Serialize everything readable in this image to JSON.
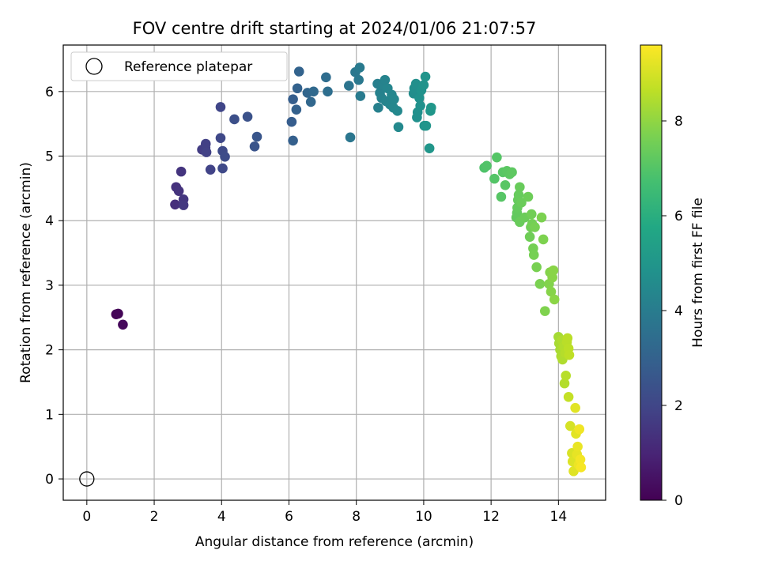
{
  "chart_data": {
    "type": "scatter",
    "title": "FOV centre drift starting at 2024/01/06 21:07:57",
    "xlabel": "Angular distance from reference (arcmin)",
    "ylabel": "Rotation from reference (arcmin)",
    "xlim": [
      -0.7,
      15.4
    ],
    "ylim": [
      -0.33,
      6.72
    ],
    "xticks": [
      0,
      2,
      4,
      6,
      8,
      10,
      12,
      14
    ],
    "yticks": [
      0,
      1,
      2,
      3,
      4,
      5,
      6
    ],
    "grid": true,
    "legend": {
      "position": "top-left",
      "entries": [
        "Reference platepar"
      ]
    },
    "reference_point": {
      "x": 0,
      "y": 0
    },
    "colorbar": {
      "label": "Hours from first FF file",
      "colormap": "viridis",
      "range": [
        0,
        9.6
      ],
      "ticks": [
        0,
        2,
        4,
        6,
        8
      ]
    },
    "points": [
      {
        "x": 0.87,
        "y": 2.55,
        "t": 0.05
      },
      {
        "x": 0.93,
        "y": 2.56,
        "t": 0.1
      },
      {
        "x": 1.07,
        "y": 2.39,
        "t": 0.2
      },
      {
        "x": 2.62,
        "y": 4.25,
        "t": 1.3
      },
      {
        "x": 2.65,
        "y": 4.52,
        "t": 1.35
      },
      {
        "x": 2.73,
        "y": 4.46,
        "t": 1.4
      },
      {
        "x": 2.8,
        "y": 4.76,
        "t": 1.45
      },
      {
        "x": 2.87,
        "y": 4.33,
        "t": 1.5
      },
      {
        "x": 2.87,
        "y": 4.24,
        "t": 1.55
      },
      {
        "x": 3.42,
        "y": 5.1,
        "t": 1.7
      },
      {
        "x": 3.52,
        "y": 5.13,
        "t": 1.75
      },
      {
        "x": 3.53,
        "y": 5.19,
        "t": 1.8
      },
      {
        "x": 3.55,
        "y": 5.06,
        "t": 1.85
      },
      {
        "x": 3.67,
        "y": 4.79,
        "t": 1.9
      },
      {
        "x": 3.97,
        "y": 5.76,
        "t": 2.0
      },
      {
        "x": 3.97,
        "y": 5.28,
        "t": 2.05
      },
      {
        "x": 4.03,
        "y": 4.81,
        "t": 2.1
      },
      {
        "x": 4.03,
        "y": 5.08,
        "t": 2.15
      },
      {
        "x": 4.1,
        "y": 4.99,
        "t": 2.2
      },
      {
        "x": 4.38,
        "y": 5.57,
        "t": 2.3
      },
      {
        "x": 4.77,
        "y": 5.61,
        "t": 2.4
      },
      {
        "x": 4.98,
        "y": 5.15,
        "t": 2.5
      },
      {
        "x": 5.05,
        "y": 5.3,
        "t": 2.55
      },
      {
        "x": 6.08,
        "y": 5.53,
        "t": 2.8
      },
      {
        "x": 6.12,
        "y": 5.88,
        "t": 2.85
      },
      {
        "x": 6.12,
        "y": 5.24,
        "t": 2.9
      },
      {
        "x": 6.22,
        "y": 5.72,
        "t": 2.95
      },
      {
        "x": 6.25,
        "y": 6.05,
        "t": 3.0
      },
      {
        "x": 6.3,
        "y": 6.31,
        "t": 3.05
      },
      {
        "x": 6.55,
        "y": 5.98,
        "t": 3.15
      },
      {
        "x": 6.65,
        "y": 5.84,
        "t": 3.2
      },
      {
        "x": 6.73,
        "y": 6.0,
        "t": 3.25
      },
      {
        "x": 7.1,
        "y": 6.22,
        "t": 3.4
      },
      {
        "x": 7.15,
        "y": 6.0,
        "t": 3.45
      },
      {
        "x": 7.78,
        "y": 6.09,
        "t": 3.7
      },
      {
        "x": 7.82,
        "y": 5.29,
        "t": 3.75
      },
      {
        "x": 7.97,
        "y": 6.3,
        "t": 3.8
      },
      {
        "x": 8.07,
        "y": 6.18,
        "t": 3.85
      },
      {
        "x": 8.1,
        "y": 6.37,
        "t": 3.9
      },
      {
        "x": 8.12,
        "y": 5.93,
        "t": 3.95
      },
      {
        "x": 8.63,
        "y": 6.12,
        "t": 4.1
      },
      {
        "x": 8.65,
        "y": 5.75,
        "t": 4.15
      },
      {
        "x": 8.7,
        "y": 5.98,
        "t": 4.2
      },
      {
        "x": 8.75,
        "y": 5.9,
        "t": 4.22
      },
      {
        "x": 8.82,
        "y": 6.1,
        "t": 4.25
      },
      {
        "x": 8.85,
        "y": 6.18,
        "t": 4.28
      },
      {
        "x": 8.88,
        "y": 5.85,
        "t": 4.3
      },
      {
        "x": 8.93,
        "y": 6.05,
        "t": 4.33
      },
      {
        "x": 9.0,
        "y": 5.8,
        "t": 4.35
      },
      {
        "x": 9.05,
        "y": 5.95,
        "t": 4.38
      },
      {
        "x": 9.1,
        "y": 5.75,
        "t": 4.4
      },
      {
        "x": 9.12,
        "y": 5.88,
        "t": 4.42
      },
      {
        "x": 9.22,
        "y": 5.7,
        "t": 4.45
      },
      {
        "x": 9.25,
        "y": 5.45,
        "t": 4.5
      },
      {
        "x": 9.7,
        "y": 5.97,
        "t": 4.65
      },
      {
        "x": 9.72,
        "y": 6.05,
        "t": 4.7
      },
      {
        "x": 9.77,
        "y": 6.12,
        "t": 4.72
      },
      {
        "x": 9.8,
        "y": 5.6,
        "t": 4.75
      },
      {
        "x": 9.82,
        "y": 5.68,
        "t": 4.78
      },
      {
        "x": 9.87,
        "y": 5.9,
        "t": 4.8
      },
      {
        "x": 9.9,
        "y": 5.78,
        "t": 4.82
      },
      {
        "x": 9.93,
        "y": 6.02,
        "t": 4.85
      },
      {
        "x": 10.0,
        "y": 6.1,
        "t": 4.88
      },
      {
        "x": 10.02,
        "y": 5.47,
        "t": 4.9
      },
      {
        "x": 10.05,
        "y": 6.23,
        "t": 4.92
      },
      {
        "x": 10.07,
        "y": 5.47,
        "t": 4.95
      },
      {
        "x": 10.17,
        "y": 5.12,
        "t": 5.0
      },
      {
        "x": 10.2,
        "y": 5.7,
        "t": 5.02
      },
      {
        "x": 10.22,
        "y": 5.75,
        "t": 5.05
      },
      {
        "x": 11.8,
        "y": 4.82,
        "t": 6.9
      },
      {
        "x": 11.87,
        "y": 4.85,
        "t": 6.95
      },
      {
        "x": 12.1,
        "y": 4.65,
        "t": 7.0
      },
      {
        "x": 12.17,
        "y": 4.98,
        "t": 7.02
      },
      {
        "x": 12.3,
        "y": 4.37,
        "t": 7.05
      },
      {
        "x": 12.35,
        "y": 4.75,
        "t": 7.08
      },
      {
        "x": 12.42,
        "y": 4.55,
        "t": 7.1
      },
      {
        "x": 12.47,
        "y": 4.77,
        "t": 7.12
      },
      {
        "x": 12.55,
        "y": 4.72,
        "t": 7.15
      },
      {
        "x": 12.62,
        "y": 4.75,
        "t": 7.18
      },
      {
        "x": 12.75,
        "y": 4.05,
        "t": 7.25
      },
      {
        "x": 12.77,
        "y": 4.12,
        "t": 7.27
      },
      {
        "x": 12.78,
        "y": 4.2,
        "t": 7.3
      },
      {
        "x": 12.8,
        "y": 4.32,
        "t": 7.32
      },
      {
        "x": 12.82,
        "y": 4.4,
        "t": 7.34
      },
      {
        "x": 12.85,
        "y": 4.52,
        "t": 7.36
      },
      {
        "x": 12.85,
        "y": 3.98,
        "t": 7.38
      },
      {
        "x": 12.9,
        "y": 4.28,
        "t": 7.4
      },
      {
        "x": 13.0,
        "y": 4.05,
        "t": 7.42
      },
      {
        "x": 13.1,
        "y": 4.37,
        "t": 7.45
      },
      {
        "x": 13.15,
        "y": 3.75,
        "t": 7.48
      },
      {
        "x": 13.18,
        "y": 3.9,
        "t": 7.5
      },
      {
        "x": 13.2,
        "y": 4.1,
        "t": 7.52
      },
      {
        "x": 13.22,
        "y": 3.95,
        "t": 7.55
      },
      {
        "x": 13.25,
        "y": 3.57,
        "t": 7.58
      },
      {
        "x": 13.27,
        "y": 3.47,
        "t": 7.6
      },
      {
        "x": 13.3,
        "y": 3.9,
        "t": 7.62
      },
      {
        "x": 13.35,
        "y": 3.28,
        "t": 7.65
      },
      {
        "x": 13.45,
        "y": 3.02,
        "t": 7.68
      },
      {
        "x": 13.5,
        "y": 4.05,
        "t": 7.7
      },
      {
        "x": 13.55,
        "y": 3.71,
        "t": 7.73
      },
      {
        "x": 13.6,
        "y": 2.6,
        "t": 7.75
      },
      {
        "x": 13.72,
        "y": 3.02,
        "t": 7.8
      },
      {
        "x": 13.75,
        "y": 3.2,
        "t": 7.82
      },
      {
        "x": 13.78,
        "y": 2.9,
        "t": 7.85
      },
      {
        "x": 13.82,
        "y": 3.12,
        "t": 7.88
      },
      {
        "x": 13.85,
        "y": 3.23,
        "t": 7.9
      },
      {
        "x": 13.88,
        "y": 2.78,
        "t": 7.92
      },
      {
        "x": 14.0,
        "y": 2.2,
        "t": 8.3
      },
      {
        "x": 14.02,
        "y": 2.1,
        "t": 8.33
      },
      {
        "x": 14.05,
        "y": 2.0,
        "t": 8.36
      },
      {
        "x": 14.08,
        "y": 1.9,
        "t": 8.4
      },
      {
        "x": 14.1,
        "y": 2.15,
        "t": 8.42
      },
      {
        "x": 14.12,
        "y": 1.85,
        "t": 8.45
      },
      {
        "x": 14.15,
        "y": 2.05,
        "t": 8.48
      },
      {
        "x": 14.18,
        "y": 1.48,
        "t": 8.5
      },
      {
        "x": 14.2,
        "y": 1.95,
        "t": 8.52
      },
      {
        "x": 14.22,
        "y": 1.6,
        "t": 8.55
      },
      {
        "x": 14.25,
        "y": 2.12,
        "t": 8.58
      },
      {
        "x": 14.27,
        "y": 2.18,
        "t": 8.6
      },
      {
        "x": 14.3,
        "y": 2.02,
        "t": 8.62
      },
      {
        "x": 14.32,
        "y": 1.92,
        "t": 8.65
      },
      {
        "x": 14.3,
        "y": 1.27,
        "t": 8.75
      },
      {
        "x": 14.35,
        "y": 0.82,
        "t": 9.0
      },
      {
        "x": 14.4,
        "y": 0.4,
        "t": 9.05
      },
      {
        "x": 14.42,
        "y": 0.27,
        "t": 9.1
      },
      {
        "x": 14.45,
        "y": 0.12,
        "t": 9.15
      },
      {
        "x": 14.5,
        "y": 1.1,
        "t": 9.18
      },
      {
        "x": 14.52,
        "y": 0.7,
        "t": 9.2
      },
      {
        "x": 14.55,
        "y": 0.38,
        "t": 9.25
      },
      {
        "x": 14.57,
        "y": 0.5,
        "t": 9.3
      },
      {
        "x": 14.6,
        "y": 0.22,
        "t": 9.35
      },
      {
        "x": 14.62,
        "y": 0.77,
        "t": 9.4
      },
      {
        "x": 14.65,
        "y": 0.3,
        "t": 9.45
      },
      {
        "x": 14.67,
        "y": 0.18,
        "t": 9.5
      }
    ]
  }
}
